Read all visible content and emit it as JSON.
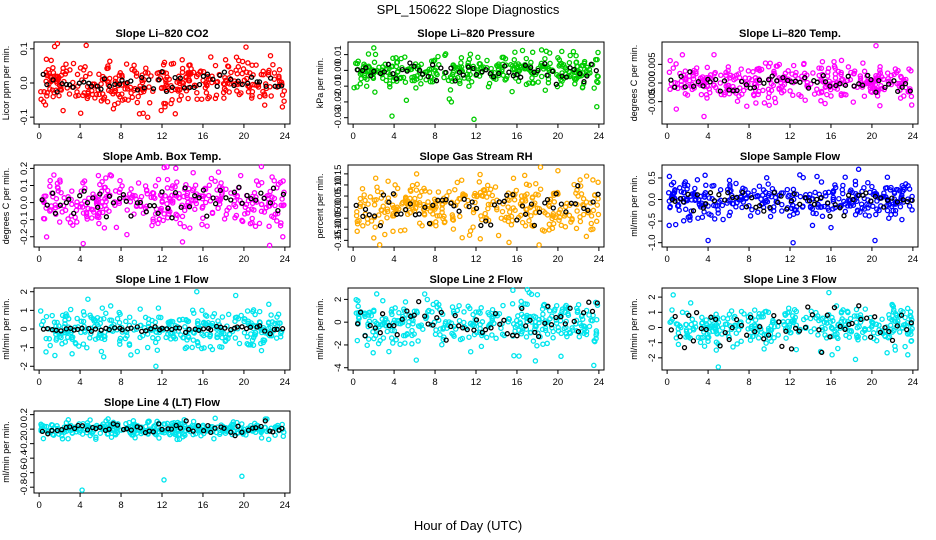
{
  "figure": {
    "title": "SPL_150622  Slope Diagnostics",
    "xlabel": "Hour of Day (UTC)"
  },
  "chart_data": [
    {
      "type": "scatter",
      "title": "Slope Li–820 CO2",
      "ylabel": "Licor ppm per min.",
      "color": "#ff0000",
      "xlim": [
        -0.5,
        24.5
      ],
      "ylim": [
        -0.12,
        0.12
      ],
      "xticks": [
        0,
        4,
        8,
        12,
        16,
        20,
        24
      ],
      "yticks": [
        -0.1,
        0.0,
        0.1
      ],
      "ytick_labels": [
        "-0.1",
        "0.0",
        "0.1"
      ],
      "spread": 0.035,
      "seed": 11,
      "black_spread": 0.015,
      "outliers": [
        [
          4.6,
          0.11
        ],
        [
          9.8,
          -0.09
        ],
        [
          10.6,
          -0.1
        ],
        [
          13.3,
          -0.09
        ],
        [
          20.2,
          0.105
        ],
        [
          22.6,
          0.08
        ]
      ]
    },
    {
      "type": "scatter",
      "title": "Slope Li–820 Pressure",
      "ylabel": "kPa per min.",
      "color": "#00cc00",
      "xlim": [
        -0.5,
        24.5
      ],
      "ylim": [
        -0.034,
        0.018
      ],
      "xticks": [
        0,
        4,
        8,
        12,
        16,
        20,
        24
      ],
      "yticks": [
        -0.03,
        -0.02,
        -0.01,
        0.0,
        0.01
      ],
      "ytick_labels": [
        "-0.03",
        "-0.02",
        "-0.01",
        "0.00",
        "0.01"
      ],
      "spread": 0.005,
      "seed": 23,
      "black_spread": 0.003,
      "outliers": [
        [
          0.1,
          -0.011
        ],
        [
          2.9,
          -0.005
        ],
        [
          3.8,
          -0.029
        ],
        [
          5.2,
          -0.019
        ],
        [
          9.6,
          -0.02
        ],
        [
          11.8,
          -0.031
        ],
        [
          17.5,
          -0.008
        ],
        [
          23.8,
          -0.023
        ],
        [
          19.2,
          0.011
        ]
      ]
    },
    {
      "type": "scatter",
      "title": "Slope Li–820 Temp.",
      "ylabel": "degrees C per min.",
      "color": "#ff00ff",
      "xlim": [
        -0.5,
        24.5
      ],
      "ylim": [
        -0.011,
        0.011
      ],
      "xticks": [
        0,
        4,
        8,
        12,
        16,
        20,
        24
      ],
      "yticks": [
        -0.005,
        0.0,
        0.005
      ],
      "ytick_labels": [
        "-0.005",
        "0.000",
        "0.005"
      ],
      "spread": 0.0025,
      "seed": 37,
      "black_spread": 0.0012,
      "outliers": [
        [
          0.3,
          0.006
        ],
        [
          0.6,
          0.004
        ],
        [
          3.6,
          -0.009
        ],
        [
          20.4,
          0.01
        ],
        [
          0.9,
          -0.007
        ]
      ]
    },
    {
      "type": "scatter",
      "title": "Slope Amb. Box Temp.",
      "ylabel": "degrees C per min.",
      "color": "#ff00ff",
      "xlim": [
        -0.5,
        24.5
      ],
      "ylim": [
        -0.26,
        0.22
      ],
      "xticks": [
        0,
        4,
        8,
        12,
        16,
        20,
        24
      ],
      "yticks": [
        -0.2,
        -0.1,
        0.0,
        0.1,
        0.2
      ],
      "ytick_labels": [
        "-0.2",
        "-0.1",
        "0.0",
        "0.1",
        "0.2"
      ],
      "spread": 0.08,
      "seed": 41,
      "black_spread": 0.05,
      "outliers": [
        [
          4.3,
          -0.24
        ],
        [
          14.0,
          -0.23
        ],
        [
          23.8,
          -0.2
        ]
      ]
    },
    {
      "type": "scatter",
      "title": "Slope Gas Stream RH",
      "ylabel": "percent per min.",
      "color": "#ffaa00",
      "xlim": [
        -0.5,
        24.5
      ],
      "ylim": [
        -0.18,
        0.19
      ],
      "xticks": [
        0,
        4,
        8,
        12,
        16,
        20,
        24
      ],
      "yticks": [
        -0.15,
        -0.1,
        -0.05,
        0.0,
        0.05,
        0.1,
        0.15
      ],
      "ytick_labels": [
        "-0.15",
        "-0.10",
        "-0.05",
        "0.00",
        "0.05",
        "0.10",
        "0.15"
      ],
      "spread": 0.06,
      "seed": 53,
      "black_spread": 0.045,
      "outliers": [
        [
          6.2,
          0.15
        ],
        [
          18.3,
          0.18
        ],
        [
          22.8,
          0.14
        ],
        [
          2.6,
          -0.17
        ]
      ]
    },
    {
      "type": "scatter",
      "title": "Slope Sample Flow",
      "ylabel": "ml/min per min.",
      "color": "#0000ff",
      "xlim": [
        -0.5,
        24.5
      ],
      "ylim": [
        -1.1,
        0.8
      ],
      "xticks": [
        0,
        4,
        8,
        12,
        16,
        20,
        24
      ],
      "yticks": [
        -1.0,
        -0.5,
        0.0,
        0.5
      ],
      "ytick_labels": [
        "-1.0",
        "-0.5",
        "0.0",
        "0.5"
      ],
      "spread": 0.2,
      "seed": 67,
      "black_spread": 0.12,
      "outliers": [
        [
          4.0,
          -0.95
        ],
        [
          12.3,
          -1.0
        ],
        [
          14.2,
          -0.6
        ],
        [
          16.0,
          -0.65
        ],
        [
          18.7,
          0.7
        ],
        [
          20.3,
          -0.95
        ],
        [
          0.2,
          -0.6
        ]
      ]
    },
    {
      "type": "scatter",
      "title": "Slope Line 1 Flow",
      "ylabel": "ml/min per min.",
      "color": "#00e5ee",
      "xlim": [
        -0.5,
        24.5
      ],
      "ylim": [
        -2.2,
        2.2
      ],
      "xticks": [
        0,
        4,
        8,
        12,
        16,
        20,
        24
      ],
      "yticks": [
        -2,
        -1,
        0,
        1,
        2
      ],
      "ytick_labels": [
        "-2",
        "-1",
        "0",
        "1",
        "2"
      ],
      "spread": 0.55,
      "seed": 71,
      "black_spread": 0.08,
      "outliers": [
        [
          11.4,
          -2.0
        ],
        [
          15.4,
          2.0
        ],
        [
          19.2,
          1.8
        ]
      ]
    },
    {
      "type": "scatter",
      "title": "Slope Line 2 Flow",
      "ylabel": "ml/min per min.",
      "color": "#00e5ee",
      "xlim": [
        -0.5,
        24.5
      ],
      "ylim": [
        -4.2,
        3.0
      ],
      "xticks": [
        0,
        4,
        8,
        12,
        16,
        20,
        24
      ],
      "yticks": [
        -4,
        -2,
        0,
        2
      ],
      "ytick_labels": [
        "-4",
        "-2",
        "0",
        "2"
      ],
      "spread": 1.0,
      "seed": 83,
      "black_spread": 0.9,
      "outliers": [
        [
          15.6,
          2.8
        ],
        [
          17.2,
          2.6
        ],
        [
          17.8,
          -3.4
        ],
        [
          20.3,
          -3.0
        ],
        [
          23.5,
          -3.8
        ]
      ]
    },
    {
      "type": "scatter",
      "title": "Slope Line 3 Flow",
      "ylabel": "ml/min per min.",
      "color": "#00e5ee",
      "xlim": [
        -0.5,
        24.5
      ],
      "ylim": [
        -2.8,
        2.6
      ],
      "xticks": [
        0,
        4,
        8,
        12,
        16,
        20,
        24
      ],
      "yticks": [
        -2,
        -1,
        0,
        1,
        2
      ],
      "ytick_labels": [
        "-2",
        "-1",
        "0",
        "1",
        "2"
      ],
      "spread": 0.7,
      "seed": 97,
      "black_spread": 0.7,
      "outliers": [
        [
          5.0,
          -2.6
        ],
        [
          15.8,
          2.3
        ],
        [
          18.4,
          -2.1
        ],
        [
          23.5,
          -1.8
        ]
      ]
    },
    {
      "type": "scatter",
      "title": "Slope Line 4 (LT) Flow",
      "ylabel": "ml/min per min.",
      "color": "#00e5ee",
      "xlim": [
        -0.5,
        24.5
      ],
      "ylim": [
        -0.88,
        0.25
      ],
      "xticks": [
        0,
        4,
        8,
        12,
        16,
        20,
        24
      ],
      "yticks": [
        -0.8,
        -0.6,
        -0.4,
        -0.2,
        0.0,
        0.2
      ],
      "ytick_labels": [
        "-0.8",
        "-0.6",
        "-0.4",
        "-0.2",
        "0.0",
        "0.2"
      ],
      "spread": 0.055,
      "seed": 101,
      "black_spread": 0.04,
      "outliers": [
        [
          4.2,
          -0.84
        ],
        [
          12.2,
          -0.7
        ],
        [
          19.8,
          -0.65
        ],
        [
          17.2,
          0.15
        ],
        [
          22.1,
          0.14
        ]
      ]
    }
  ]
}
